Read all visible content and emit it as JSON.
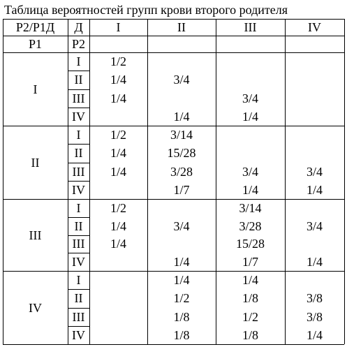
{
  "title": "Таблица вероятностей групп крови второго родителя",
  "header": {
    "corner": "P2/P1Д",
    "d": "Д",
    "cols": [
      "I",
      "II",
      "III",
      "IV"
    ]
  },
  "subheader": {
    "p1": "P1",
    "p2": "P2"
  },
  "groups": [
    {
      "label": "I",
      "rows": [
        {
          "sub": "I",
          "cells": [
            "1/2",
            "",
            "",
            ""
          ]
        },
        {
          "sub": "II",
          "cells": [
            "1/4",
            "3/4",
            "",
            ""
          ]
        },
        {
          "sub": "III",
          "cells": [
            "1/4",
            "",
            "3/4",
            ""
          ]
        },
        {
          "sub": "IV",
          "cells": [
            "",
            "1/4",
            "1/4",
            ""
          ]
        }
      ]
    },
    {
      "label": "II",
      "rows": [
        {
          "sub": "I",
          "cells": [
            "1/2",
            "3/14",
            "",
            ""
          ]
        },
        {
          "sub": "II",
          "cells": [
            "1/4",
            "15/28",
            "",
            ""
          ]
        },
        {
          "sub": "III",
          "cells": [
            "1/4",
            "3/28",
            "3/4",
            "3/4"
          ]
        },
        {
          "sub": "IV",
          "cells": [
            "",
            "1/7",
            "1/4",
            "1/4"
          ]
        }
      ]
    },
    {
      "label": "III",
      "rows": [
        {
          "sub": "I",
          "cells": [
            "1/2",
            "",
            "3/14",
            ""
          ]
        },
        {
          "sub": "II",
          "cells": [
            "1/4",
            "3/4",
            "3/28",
            "3/4"
          ]
        },
        {
          "sub": "III",
          "cells": [
            "1/4",
            "",
            "15/28",
            ""
          ]
        },
        {
          "sub": "IV",
          "cells": [
            "",
            "1/4",
            "1/7",
            "1/4"
          ]
        }
      ]
    },
    {
      "label": "IV",
      "rows": [
        {
          "sub": "I",
          "cells": [
            "",
            "1/4",
            "1/4",
            ""
          ]
        },
        {
          "sub": "II",
          "cells": [
            "",
            "1/2",
            "1/8",
            "3/8"
          ]
        },
        {
          "sub": "III",
          "cells": [
            "",
            "1/8",
            "1/2",
            "3/8"
          ]
        },
        {
          "sub": "IV",
          "cells": [
            "",
            "1/8",
            "1/8",
            "1/4"
          ]
        }
      ]
    }
  ]
}
